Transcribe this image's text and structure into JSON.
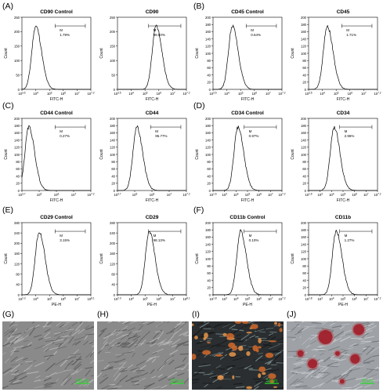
{
  "panel_letters": [
    "(A)",
    "(B)",
    "(C)",
    "(D)",
    "(E)",
    "(F)",
    "(G)",
    "(H)",
    "(I)",
    "(J)"
  ],
  "colors": {
    "line": "#000000",
    "scale_bar": "#22dd22"
  },
  "chart_data": [
    {
      "type": "line",
      "title": "CD90 Control",
      "xlabel": "FITC-H",
      "ylabel": "Count",
      "ylim": [
        0,
        250
      ],
      "yticks": [
        "0",
        "50",
        "100",
        "150",
        "200",
        "250"
      ],
      "xticks": [
        "10^3.5",
        "10^4",
        "10^5",
        "10^6",
        "10^7",
        "10^7.2"
      ],
      "gate": {
        "label": "M",
        "percent": "1.79%"
      },
      "peak_x": 0.2
    },
    {
      "type": "line",
      "title": "CD90",
      "xlabel": "FITC-H",
      "ylabel": "Count",
      "ylim": [
        0,
        250
      ],
      "yticks": [
        "0",
        "50",
        "100",
        "150",
        "200",
        "250"
      ],
      "xticks": [
        "10^3.5",
        "10^4",
        "10^5",
        "10^6",
        "10^7",
        "10^7.2"
      ],
      "gate": {
        "label": "M",
        "percent": "98.50%"
      },
      "peak_x": 0.56
    },
    {
      "type": "line",
      "title": "CD45 Control",
      "xlabel": "FITC-H",
      "ylabel": "Count",
      "ylim": [
        0,
        200
      ],
      "yticks": [
        "0",
        "20",
        "40",
        "60",
        "80",
        "100",
        "120",
        "140",
        "160",
        "180",
        "200"
      ],
      "xticks": [
        "10^3.5",
        "10^4",
        "10^5",
        "10^6",
        "10^7",
        "10^7.2"
      ],
      "gate": {
        "label": "M",
        "percent": "0.64%"
      },
      "peak_x": 0.28
    },
    {
      "type": "line",
      "title": "CD45",
      "xlabel": "FITC-H",
      "ylabel": "Count",
      "ylim": [
        0,
        200
      ],
      "yticks": [
        "0",
        "20",
        "40",
        "60",
        "80",
        "100",
        "120",
        "140",
        "160",
        "180",
        "200"
      ],
      "xticks": [
        "10^3.5",
        "10^4",
        "10^5",
        "10^6",
        "10^7",
        "10^7.2"
      ],
      "gate": {
        "label": "M",
        "percent": "1.71%"
      },
      "peak_x": 0.27
    },
    {
      "type": "line",
      "title": "CD44 Control",
      "xlabel": "FITC-H",
      "ylabel": "Count",
      "ylim": [
        0,
        200
      ],
      "yticks": [
        "0",
        "20",
        "40",
        "60",
        "80",
        "100",
        "120",
        "140",
        "160",
        "180",
        "200"
      ],
      "xticks": [
        "10^3.7",
        "10^5",
        "10^6",
        "10^7",
        "10^7.2"
      ],
      "gate": {
        "label": "M",
        "percent": "0.27%"
      },
      "peak_x": 0.1
    },
    {
      "type": "line",
      "title": "CD44",
      "xlabel": "FITC-H",
      "ylabel": "Count",
      "ylim": [
        0,
        200
      ],
      "yticks": [
        "0",
        "20",
        "40",
        "60",
        "80",
        "100",
        "120",
        "140",
        "160",
        "180",
        "200"
      ],
      "xticks": [
        "10^3.7",
        "10^5",
        "10^6",
        "10^7",
        "10^7.2"
      ],
      "gate": {
        "label": "M",
        "percent": "95.77%"
      },
      "peak_x": 0.28
    },
    {
      "type": "line",
      "title": "CD34 Control",
      "xlabel": "FITC-H",
      "ylabel": "Count",
      "ylim": [
        0,
        200
      ],
      "yticks": [
        "0",
        "20",
        "40",
        "60",
        "80",
        "100",
        "120",
        "140",
        "160",
        "180",
        "200"
      ],
      "xticks": [
        "10^1.6",
        "10^3",
        "10^4",
        "10^5",
        "10^6",
        "10^7",
        "10^7.2"
      ],
      "gate": {
        "label": "M",
        "percent": "0.97%"
      },
      "peak_x": 0.36
    },
    {
      "type": "line",
      "title": "CD34",
      "xlabel": "FITC-H",
      "ylabel": "Count",
      "ylim": [
        0,
        200
      ],
      "yticks": [
        "0",
        "20",
        "40",
        "60",
        "80",
        "100",
        "120",
        "140",
        "160",
        "180",
        "200"
      ],
      "xticks": [
        "10^1.6",
        "10^3",
        "10^4",
        "10^5",
        "10^6",
        "10^7",
        "10^7.2"
      ],
      "gate": {
        "label": "M",
        "percent": "2.96%"
      },
      "peak_x": 0.37
    },
    {
      "type": "line",
      "title": "CD29 Control",
      "xlabel": "PE-H",
      "ylabel": "Count",
      "ylim": [
        0,
        280
      ],
      "yticks": [
        "0",
        "40",
        "80",
        "120",
        "160",
        "200",
        "240",
        "280"
      ],
      "xticks": [
        "10^2.3",
        "10^4",
        "10^5",
        "10^6",
        "10^7",
        "10^8.1"
      ],
      "gate": {
        "label": "M",
        "percent": "3.15%"
      },
      "peak_x": 0.25
    },
    {
      "type": "line",
      "title": "CD29",
      "xlabel": "PE-H",
      "ylabel": "Count",
      "ylim": [
        0,
        280
      ],
      "yticks": [
        "0",
        "40",
        "80",
        "120",
        "160",
        "200",
        "240",
        "280"
      ],
      "xticks": [
        "10^2.3",
        "10^4",
        "10^5",
        "10^6",
        "10^7",
        "10^8.1"
      ],
      "gate": {
        "label": "M",
        "percent": "98.13%"
      },
      "peak_x": 0.46
    },
    {
      "type": "line",
      "title": "CD11b Control",
      "xlabel": "PE-H",
      "ylabel": "Count",
      "ylim": [
        0,
        200
      ],
      "yticks": [
        "0",
        "20",
        "40",
        "60",
        "80",
        "100",
        "120",
        "140",
        "160",
        "180",
        "200"
      ],
      "xticks": [
        "10^1.8",
        "10^3",
        "10^4",
        "10^5",
        "10^6",
        "10^7",
        "10^7.2"
      ],
      "gate": {
        "label": "M",
        "percent": "0.10%"
      },
      "peak_x": 0.4
    },
    {
      "type": "line",
      "title": "CD11b",
      "xlabel": "PE-H",
      "ylabel": "Count",
      "ylim": [
        0,
        200
      ],
      "yticks": [
        "0",
        "20",
        "40",
        "60",
        "80",
        "100",
        "120",
        "140",
        "160",
        "180",
        "200"
      ],
      "xticks": [
        "10^1.8",
        "10^3",
        "10^4",
        "10^5",
        "10^6",
        "10^7",
        "10^7.2"
      ],
      "gate": {
        "label": "M",
        "percent": "1.27%"
      },
      "peak_x": 0.4
    }
  ],
  "micrographs": [
    {
      "letter": "(G)",
      "scale": "100 μm",
      "theme": "phase"
    },
    {
      "letter": "(H)",
      "scale": "100 μm",
      "theme": "phase"
    },
    {
      "letter": "(I)",
      "scale": "50 μm",
      "theme": "orange"
    },
    {
      "letter": "(J)",
      "scale": "50 μm",
      "theme": "red"
    }
  ]
}
